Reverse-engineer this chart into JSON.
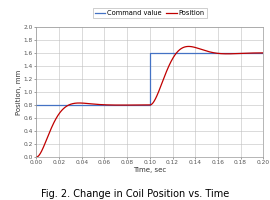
{
  "title": "Fig. 2. Change in Coil Position vs. Time",
  "xlabel": "Time, sec",
  "ylabel": "Position, mm",
  "xlim": [
    0.0,
    0.2
  ],
  "ylim": [
    0.0,
    2.0
  ],
  "xticks": [
    0.0,
    0.02,
    0.04,
    0.06,
    0.08,
    0.1,
    0.12,
    0.14,
    0.16,
    0.18,
    0.2
  ],
  "yticks": [
    0.0,
    0.2,
    0.4,
    0.6,
    0.8,
    1.0,
    1.2,
    1.4,
    1.6,
    1.8,
    2.0
  ],
  "command_color": "#4472c4",
  "position_color": "#c00000",
  "bg_color": "#ffffff",
  "grid_color": "#bfbfbf",
  "legend_labels": [
    "Command value",
    "Position"
  ],
  "command_step1": 0.8,
  "command_step2": 1.6,
  "command_switch_time": 0.1,
  "title_fontsize": 7.0,
  "axis_fontsize": 5.0,
  "tick_fontsize": 4.2,
  "legend_fontsize": 4.8
}
